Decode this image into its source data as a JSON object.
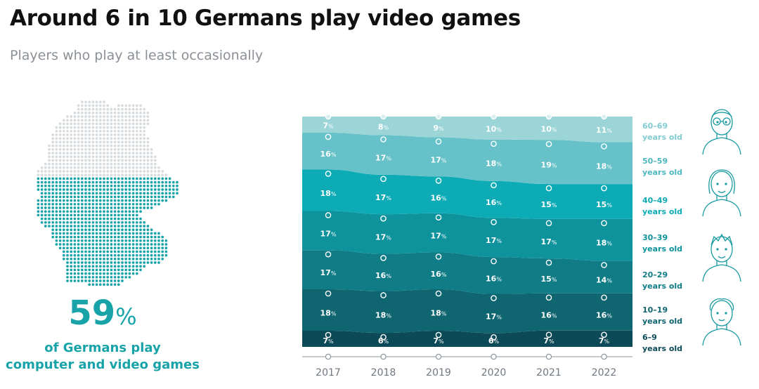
{
  "header": {
    "title": "Around 6 in 10 Germans play video games",
    "subtitle": "Players who play at least occasionally"
  },
  "stat": {
    "value": "59",
    "unit": "%",
    "caption_line1": "of Germans play",
    "caption_line2": "computer and video games",
    "color": "#17a3a8",
    "map_filled_fraction": 0.59
  },
  "chart_data": {
    "type": "area",
    "title": "Players who play at least occasionally",
    "x": [
      "2017",
      "2018",
      "2019",
      "2020",
      "2021",
      "2022"
    ],
    "unit": "%",
    "stacking": "percent, stacked from youngest (bottom) to oldest (top)",
    "series": [
      {
        "name": "6–9 years old",
        "label_line1": "6–9",
        "label_line2": "years old",
        "color": "#0d4a57",
        "label_color": "#0d4a57",
        "icon": "child-icon",
        "values": [
          7,
          6,
          7,
          6,
          7,
          7
        ]
      },
      {
        "name": "10–19 years old",
        "label_line1": "10–19",
        "label_line2": "years old",
        "color": "#0f6670",
        "label_color": "#0f6670",
        "icon": "teen-icon",
        "values": [
          18,
          18,
          18,
          17,
          16,
          16
        ]
      },
      {
        "name": "20–29 years old",
        "label_line1": "20–29",
        "label_line2": "years old",
        "color": "#0f7c86",
        "label_color": "#0f7c86",
        "icon": "young-man-icon",
        "values": [
          17,
          16,
          16,
          16,
          15,
          14
        ]
      },
      {
        "name": "30–39 years old",
        "label_line1": "30–39",
        "label_line2": "years old",
        "color": "#0e929c",
        "label_color": "#0e929c",
        "icon": "young-man-icon",
        "values": [
          17,
          17,
          17,
          17,
          17,
          18
        ]
      },
      {
        "name": "40–49 years old",
        "label_line1": "40–49",
        "label_line2": "years old",
        "color": "#0cabb5",
        "label_color": "#0cabb5",
        "icon": "woman-icon",
        "values": [
          18,
          17,
          16,
          16,
          15,
          15
        ]
      },
      {
        "name": "50–59 years old",
        "label_line1": "50–59",
        "label_line2": "years old",
        "color": "#66c2c8",
        "label_color": "#4fb7bf",
        "icon": "woman-icon",
        "values": [
          16,
          17,
          17,
          18,
          19,
          18
        ]
      },
      {
        "name": "60–69 years old",
        "label_line1": "60–69",
        "label_line2": "years old",
        "color": "#9cd5d8",
        "label_color": "#82cbd0",
        "icon": "elderly-man-icon",
        "values": [
          7,
          8,
          9,
          10,
          10,
          11
        ]
      }
    ]
  }
}
